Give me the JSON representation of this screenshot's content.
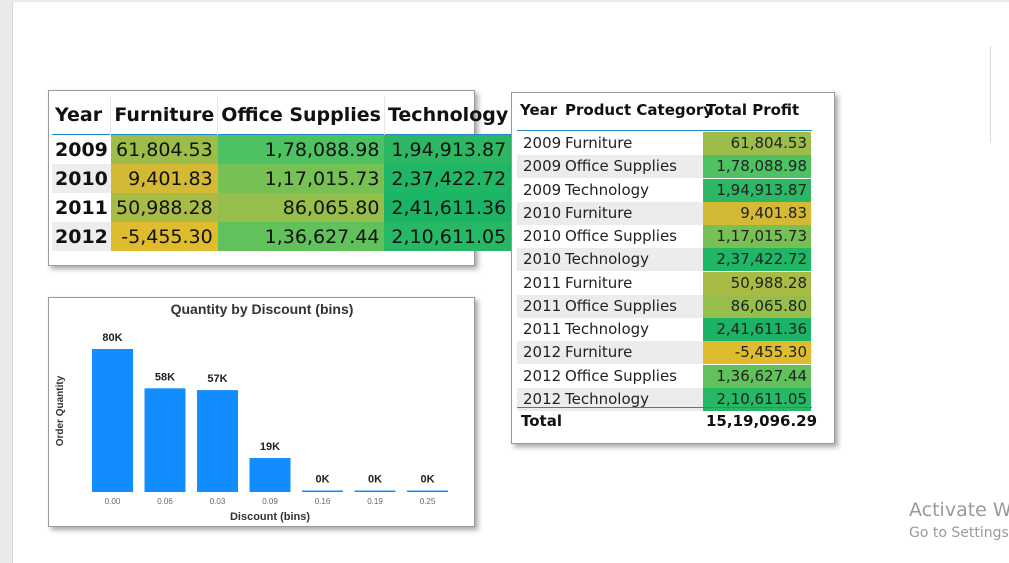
{
  "matrix": {
    "headers": [
      "Year",
      "Furniture",
      "Office Supplies",
      "Technology"
    ],
    "rows": [
      {
        "year": "2009",
        "values": [
          "61,804.53",
          "1,78,088.98",
          "1,94,913.87"
        ],
        "colors": [
          "#9cbd49",
          "#4ec162",
          "#2db765"
        ]
      },
      {
        "year": "2010",
        "values": [
          "9,401.83",
          "1,17,015.73",
          "2,37,422.72"
        ],
        "colors": [
          "#d4b934",
          "#77c054",
          "#1fb766"
        ]
      },
      {
        "year": "2011",
        "values": [
          "50,988.28",
          "86,065.80",
          "2,41,611.36"
        ],
        "colors": [
          "#a8bb45",
          "#96be4b",
          "#1bb467"
        ]
      },
      {
        "year": "2012",
        "values": [
          "-5,455.30",
          "1,36,627.44",
          "2,10,611.05"
        ],
        "colors": [
          "#dfbb2e",
          "#61c15b",
          "#26b865"
        ]
      }
    ]
  },
  "chart": {
    "title": "Quantity by Discount (bins)",
    "xlabel": "Discount (bins)",
    "ylabel": "Order Quantity",
    "color": "#118dff"
  },
  "chart_data": {
    "type": "bar",
    "title": "Quantity by Discount (bins)",
    "xlabel": "Discount (bins)",
    "ylabel": "Order Quantity",
    "categories": [
      "0.00",
      "0.06",
      "0.03",
      "0.09",
      "0.16",
      "0.19",
      "0.25"
    ],
    "values": [
      80000,
      58000,
      57000,
      19000,
      0,
      0,
      0
    ],
    "data_labels": [
      "80K",
      "58K",
      "57K",
      "19K",
      "0K",
      "0K",
      "0K"
    ],
    "ylim": [
      0,
      80000
    ],
    "grid": false,
    "legend": "none"
  },
  "detail": {
    "headers": {
      "year": "Year",
      "category": "Product Category",
      "profit": "Total Profit"
    },
    "rows": [
      {
        "year": "2009",
        "category": "Furniture",
        "profit": "61,804.53",
        "color": "#9cbd49"
      },
      {
        "year": "2009",
        "category": "Office Supplies",
        "profit": "1,78,088.98",
        "color": "#4ec162"
      },
      {
        "year": "2009",
        "category": "Technology",
        "profit": "1,94,913.87",
        "color": "#2db765"
      },
      {
        "year": "2010",
        "category": "Furniture",
        "profit": "9,401.83",
        "color": "#d4b934"
      },
      {
        "year": "2010",
        "category": "Office Supplies",
        "profit": "1,17,015.73",
        "color": "#77c054"
      },
      {
        "year": "2010",
        "category": "Technology",
        "profit": "2,37,422.72",
        "color": "#1fb766"
      },
      {
        "year": "2011",
        "category": "Furniture",
        "profit": "50,988.28",
        "color": "#a8bb45"
      },
      {
        "year": "2011",
        "category": "Office Supplies",
        "profit": "86,065.80",
        "color": "#96be4b"
      },
      {
        "year": "2011",
        "category": "Technology",
        "profit": "2,41,611.36",
        "color": "#1bb467"
      },
      {
        "year": "2012",
        "category": "Furniture",
        "profit": "-5,455.30",
        "color": "#dfbb2e"
      },
      {
        "year": "2012",
        "category": "Office Supplies",
        "profit": "1,36,627.44",
        "color": "#61c15b"
      },
      {
        "year": "2012",
        "category": "Technology",
        "profit": "2,10,611.05",
        "color": "#26b865"
      }
    ],
    "total_label": "Total",
    "total_value": "15,19,096.29"
  },
  "watermark": {
    "line1": "Activate Wi",
    "line2": "Go to Settings t"
  }
}
